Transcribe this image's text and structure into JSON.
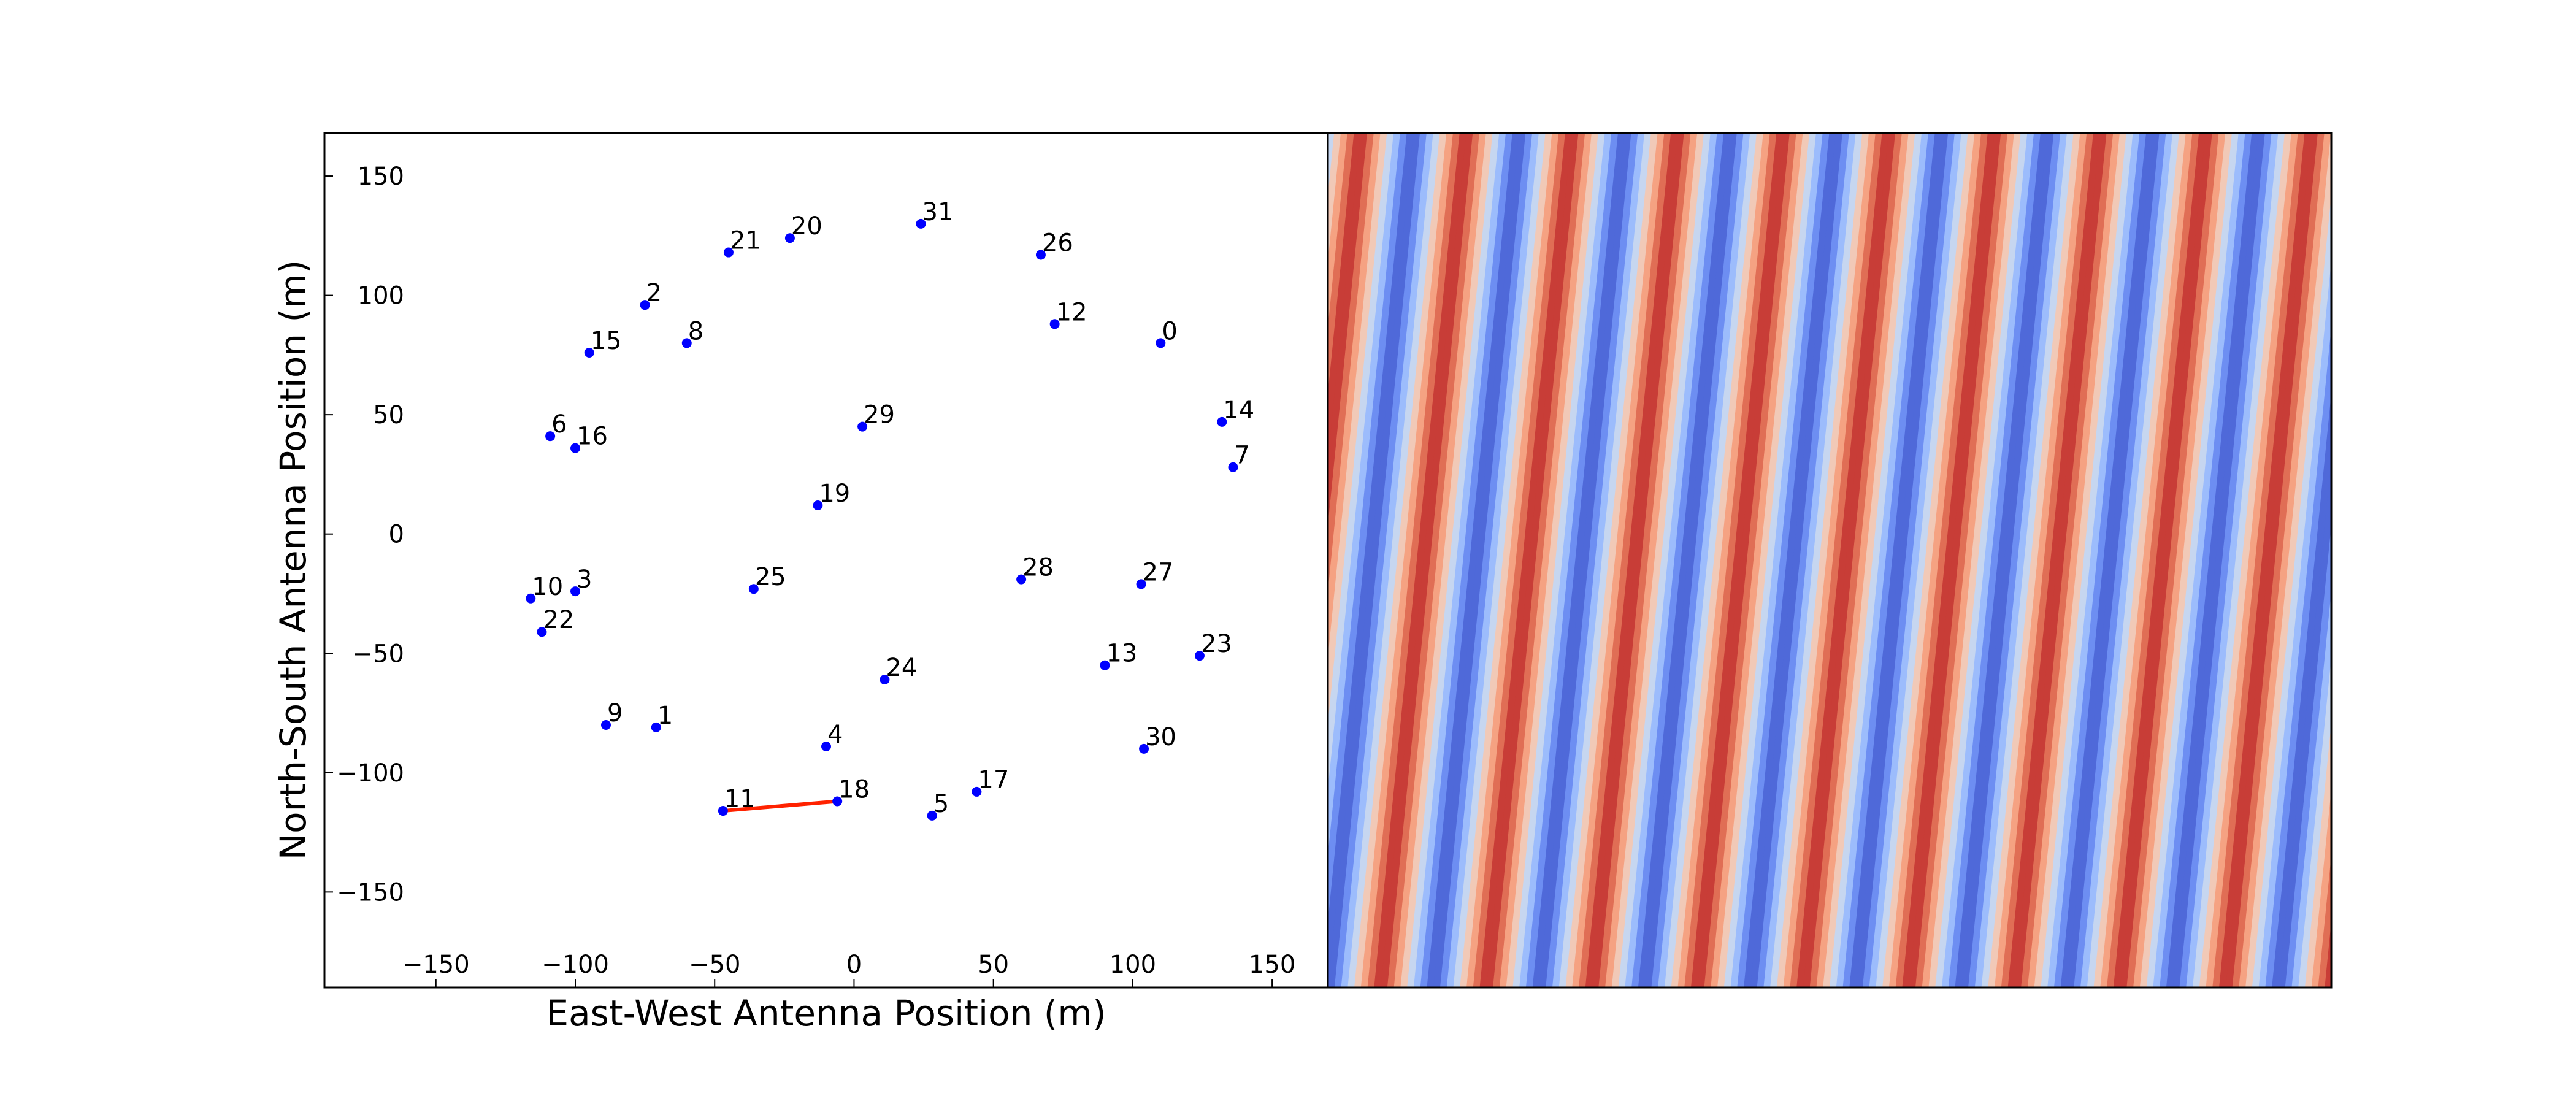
{
  "chart_data": [
    {
      "type": "scatter",
      "xlabel": "East-West Antenna Position (m)",
      "ylabel": "North-South Antenna Position (m)",
      "xlim": [
        -190,
        170
      ],
      "ylim": [
        -190,
        168
      ],
      "xticks": [
        -150,
        -100,
        -50,
        0,
        50,
        100,
        150
      ],
      "yticks": [
        150,
        100,
        50,
        0,
        -50,
        -100,
        -150
      ],
      "xtick_labels": [
        "−150",
        "−100",
        "−50",
        "0",
        "50",
        "100",
        "150"
      ],
      "ytick_labels": [
        "150",
        "100",
        "50",
        "0",
        "−50",
        "−100",
        "−150"
      ],
      "point_color": "#0000ff",
      "baseline_color": "#ff2200",
      "antennas": [
        {
          "label": "0",
          "x": 110,
          "y": 80
        },
        {
          "label": "1",
          "x": -71,
          "y": -81
        },
        {
          "label": "2",
          "x": -75,
          "y": 96
        },
        {
          "label": "3",
          "x": -100,
          "y": -24
        },
        {
          "label": "4",
          "x": -10,
          "y": -89
        },
        {
          "label": "5",
          "x": 28,
          "y": -118
        },
        {
          "label": "6",
          "x": -109,
          "y": 41
        },
        {
          "label": "7",
          "x": 136,
          "y": 28
        },
        {
          "label": "8",
          "x": -60,
          "y": 80
        },
        {
          "label": "9",
          "x": -89,
          "y": -80
        },
        {
          "label": "10",
          "x": -116,
          "y": -27
        },
        {
          "label": "11",
          "x": -47,
          "y": -116
        },
        {
          "label": "12",
          "x": 72,
          "y": 88
        },
        {
          "label": "13",
          "x": 90,
          "y": -55
        },
        {
          "label": "14",
          "x": 132,
          "y": 47
        },
        {
          "label": "15",
          "x": -95,
          "y": 76
        },
        {
          "label": "16",
          "x": -100,
          "y": 36
        },
        {
          "label": "17",
          "x": 44,
          "y": -108
        },
        {
          "label": "18",
          "x": -6,
          "y": -112
        },
        {
          "label": "19",
          "x": -13,
          "y": 12
        },
        {
          "label": "20",
          "x": -23,
          "y": 124
        },
        {
          "label": "21",
          "x": -45,
          "y": 118
        },
        {
          "label": "22",
          "x": -112,
          "y": -41
        },
        {
          "label": "23",
          "x": 124,
          "y": -51
        },
        {
          "label": "24",
          "x": 11,
          "y": -61
        },
        {
          "label": "25",
          "x": -36,
          "y": -23
        },
        {
          "label": "26",
          "x": 67,
          "y": 117
        },
        {
          "label": "27",
          "x": 103,
          "y": -21
        },
        {
          "label": "28",
          "x": 60,
          "y": -19
        },
        {
          "label": "29",
          "x": 3,
          "y": 45
        },
        {
          "label": "30",
          "x": 104,
          "y": -90
        },
        {
          "label": "31",
          "x": 24,
          "y": 130
        }
      ],
      "baseline": {
        "from": "11",
        "to": "18"
      }
    },
    {
      "type": "heatmap",
      "description_colormap": "coolwarm",
      "pattern": "diagonal fringes",
      "band_colors": [
        "#4f69d9",
        "#6d8ef2",
        "#9cbcfc",
        "#c6d6f0",
        "#f1c9b7",
        "#f5a282",
        "#e06e55",
        "#c83d37"
      ],
      "num_fringes": 9.5,
      "tilt_over_height": 0.1
    }
  ]
}
